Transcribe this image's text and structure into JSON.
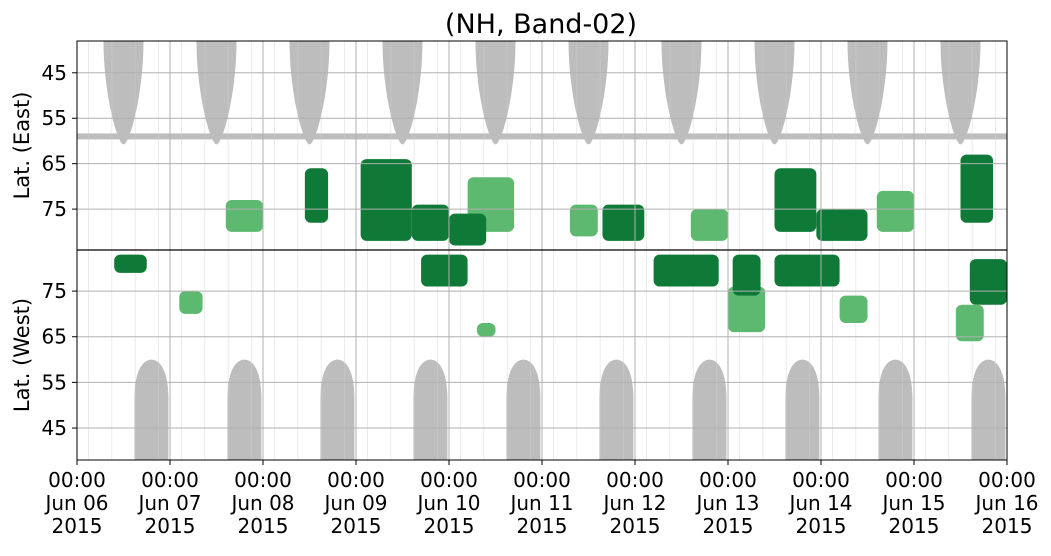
{
  "chart_data": {
    "type": "heatmap",
    "title": "(NH, Band-02)",
    "panels": [
      {
        "name": "East",
        "ylabel": "Lat. (East)",
        "yticks": [
          45,
          55,
          65,
          75
        ],
        "ylim": [
          38,
          84
        ]
      },
      {
        "name": "West",
        "ylabel": "Lat. (West)",
        "yticks": [
          75,
          65,
          55,
          45
        ],
        "ylim": [
          84,
          38
        ]
      }
    ],
    "x_ticks": [
      {
        "time": "00:00",
        "date": "Jun 06",
        "year": "2015"
      },
      {
        "time": "00:00",
        "date": "Jun 07",
        "year": "2015"
      },
      {
        "time": "00:00",
        "date": "Jun 08",
        "year": "2015"
      },
      {
        "time": "00:00",
        "date": "Jun 09",
        "year": "2015"
      },
      {
        "time": "00:00",
        "date": "Jun 10",
        "year": "2015"
      },
      {
        "time": "00:00",
        "date": "Jun 11",
        "year": "2015"
      },
      {
        "time": "00:00",
        "date": "Jun 12",
        "year": "2015"
      },
      {
        "time": "00:00",
        "date": "Jun 13",
        "year": "2015"
      },
      {
        "time": "00:00",
        "date": "Jun 14",
        "year": "2015"
      },
      {
        "time": "00:00",
        "date": "Jun 15",
        "year": "2015"
      },
      {
        "time": "00:00",
        "date": "Jun 16",
        "year": "2015"
      }
    ],
    "xlim": [
      "2015-06-06 00:00",
      "2015-06-16 00:00"
    ],
    "grid": true,
    "colors": {
      "strong": "#0f7a37",
      "weak": "#5db870",
      "no_data": "#bdbdbd",
      "boundary_line": "#000000"
    },
    "no_data_bands": {
      "east": [
        0.5,
        1.5,
        2.5,
        3.5,
        4.5,
        5.5,
        6.5,
        7.5,
        8.5,
        9.5
      ],
      "west": [
        0.8,
        1.8,
        2.8,
        3.8,
        4.8,
        5.8,
        6.8,
        7.8,
        8.8,
        9.8
      ],
      "east_bar_lat": 59
    },
    "activity_regions": [
      {
        "panel": "East",
        "day": [
          1.6,
          2.0
        ],
        "lat": [
          73,
          80
        ],
        "level": "weak"
      },
      {
        "panel": "East",
        "day": [
          2.45,
          2.7
        ],
        "lat": [
          66,
          78
        ],
        "level": "strong"
      },
      {
        "panel": "East",
        "day": [
          3.05,
          3.6
        ],
        "lat": [
          64,
          82
        ],
        "level": "strong"
      },
      {
        "panel": "East",
        "day": [
          3.6,
          4.0
        ],
        "lat": [
          74,
          82
        ],
        "level": "strong"
      },
      {
        "panel": "East",
        "day": [
          4.2,
          4.7
        ],
        "lat": [
          68,
          80
        ],
        "level": "weak"
      },
      {
        "panel": "East",
        "day": [
          4.0,
          4.4
        ],
        "lat": [
          76,
          83
        ],
        "level": "strong"
      },
      {
        "panel": "East",
        "day": [
          5.3,
          5.6
        ],
        "lat": [
          74,
          81
        ],
        "level": "weak"
      },
      {
        "panel": "East",
        "day": [
          5.65,
          6.1
        ],
        "lat": [
          74,
          82
        ],
        "level": "strong"
      },
      {
        "panel": "East",
        "day": [
          6.6,
          7.0
        ],
        "lat": [
          75,
          82
        ],
        "level": "weak"
      },
      {
        "panel": "East",
        "day": [
          7.5,
          7.95
        ],
        "lat": [
          66,
          80
        ],
        "level": "strong"
      },
      {
        "panel": "East",
        "day": [
          7.95,
          8.5
        ],
        "lat": [
          75,
          82
        ],
        "level": "strong"
      },
      {
        "panel": "East",
        "day": [
          8.6,
          9.0
        ],
        "lat": [
          71,
          80
        ],
        "level": "weak"
      },
      {
        "panel": "East",
        "day": [
          9.5,
          9.85
        ],
        "lat": [
          63,
          78
        ],
        "level": "strong"
      },
      {
        "panel": "West",
        "day": [
          0.4,
          0.75
        ],
        "lat": [
          79,
          83
        ],
        "level": "strong"
      },
      {
        "panel": "West",
        "day": [
          1.1,
          1.35
        ],
        "lat": [
          70,
          75
        ],
        "level": "weak"
      },
      {
        "panel": "West",
        "day": [
          3.7,
          4.2
        ],
        "lat": [
          76,
          83
        ],
        "level": "strong"
      },
      {
        "panel": "West",
        "day": [
          4.3,
          4.5
        ],
        "lat": [
          65,
          68
        ],
        "level": "weak"
      },
      {
        "panel": "West",
        "day": [
          6.2,
          6.9
        ],
        "lat": [
          76,
          83
        ],
        "level": "strong"
      },
      {
        "panel": "West",
        "day": [
          7.0,
          7.4
        ],
        "lat": [
          66,
          76
        ],
        "level": "weak"
      },
      {
        "panel": "West",
        "day": [
          7.05,
          7.35
        ],
        "lat": [
          74,
          83
        ],
        "level": "strong"
      },
      {
        "panel": "West",
        "day": [
          7.5,
          8.2
        ],
        "lat": [
          76,
          83
        ],
        "level": "strong"
      },
      {
        "panel": "West",
        "day": [
          8.2,
          8.5
        ],
        "lat": [
          68,
          74
        ],
        "level": "weak"
      },
      {
        "panel": "West",
        "day": [
          9.6,
          10.0
        ],
        "lat": [
          72,
          82
        ],
        "level": "strong"
      },
      {
        "panel": "West",
        "day": [
          9.45,
          9.75
        ],
        "lat": [
          64,
          72
        ],
        "level": "weak"
      }
    ]
  }
}
